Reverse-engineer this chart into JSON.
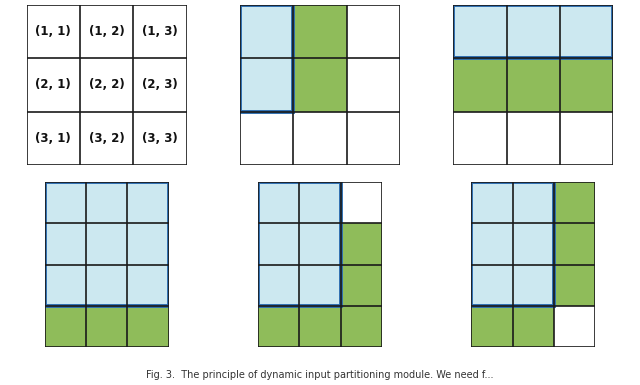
{
  "fig_width": 6.4,
  "fig_height": 3.85,
  "light_blue": "#cce8f0",
  "blue_border": "#2b6cb0",
  "green": "#8fbc5a",
  "grid_color": "#1a1a1a",
  "caption": "Fig. 3.  The principle of dynamic input partitioning module. We need f...",
  "panel_labels": [
    [
      "(1, 1)",
      "(1, 2)",
      "(1, 3)"
    ],
    [
      "(2, 1)",
      "(2, 2)",
      "(2, 3)"
    ],
    [
      "(3, 1)",
      "(3, 2)",
      "(3, 3)"
    ]
  ],
  "top_panels": {
    "cols": 3,
    "rows": 3,
    "aspect": "equal"
  },
  "bot_panels": {
    "cols": 3,
    "rows": 4,
    "aspect": "equal"
  }
}
